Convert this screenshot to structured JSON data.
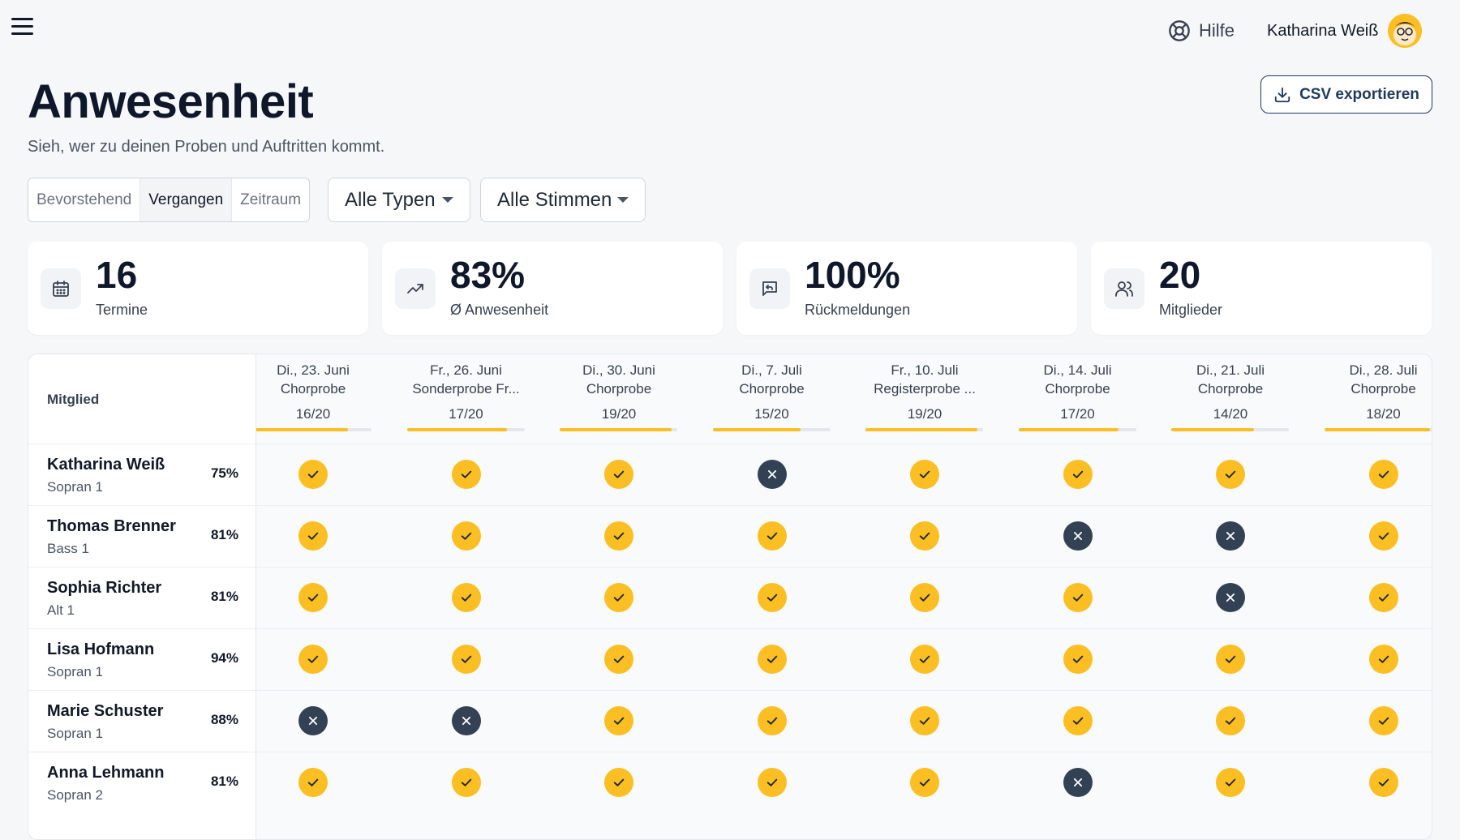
{
  "header": {
    "help_label": "Hilfe",
    "user_name": "Katharina Weiß"
  },
  "page": {
    "title": "Anwesenheit",
    "subtitle": "Sieh, wer zu deinen Proben und Auftritten kommt.",
    "export_label": "CSV exportieren"
  },
  "filters": {
    "segments": [
      "Bevorstehend",
      "Vergangen",
      "Zeitraum"
    ],
    "active_segment": "Vergangen",
    "type_select": "Alle Typen",
    "voice_select": "Alle Stimmen"
  },
  "stats": [
    {
      "value": "16",
      "label": "Termine",
      "icon": "calendar-icon"
    },
    {
      "value": "83%",
      "label": "Ø Anwesenheit",
      "icon": "trending-up-icon"
    },
    {
      "value": "100%",
      "label": "Rückmeldungen",
      "icon": "message-reply-icon"
    },
    {
      "value": "20",
      "label": "Mitglieder",
      "icon": "users-icon"
    }
  ],
  "table": {
    "member_header": "Mitglied",
    "events": [
      {
        "date": "Di., 23. Juni",
        "title": "Chorprobe",
        "count": "16/20",
        "rate": 0.8
      },
      {
        "date": "Fr., 26. Juni",
        "title": "Sonderprobe Fr...",
        "count": "17/20",
        "rate": 0.85
      },
      {
        "date": "Di., 30. Juni",
        "title": "Chorprobe",
        "count": "19/20",
        "rate": 0.95
      },
      {
        "date": "Di., 7. Juli",
        "title": "Chorprobe",
        "count": "15/20",
        "rate": 0.75
      },
      {
        "date": "Fr., 10. Juli",
        "title": "Registerprobe ...",
        "count": "19/20",
        "rate": 0.95
      },
      {
        "date": "Di., 14. Juli",
        "title": "Chorprobe",
        "count": "17/20",
        "rate": 0.85
      },
      {
        "date": "Di., 21. Juli",
        "title": "Chorprobe",
        "count": "14/20",
        "rate": 0.7
      },
      {
        "date": "Di., 28. Juli",
        "title": "Chorprobe",
        "count": "18/20",
        "rate": 0.9
      }
    ],
    "members": [
      {
        "name": "Katharina Weiß",
        "voice": "Sopran 1",
        "pct": "75%",
        "attendance": [
          1,
          1,
          1,
          0,
          1,
          1,
          1,
          1
        ]
      },
      {
        "name": "Thomas Brenner",
        "voice": "Bass 1",
        "pct": "81%",
        "attendance": [
          1,
          1,
          1,
          1,
          1,
          0,
          0,
          1
        ]
      },
      {
        "name": "Sophia Richter",
        "voice": "Alt 1",
        "pct": "81%",
        "attendance": [
          1,
          1,
          1,
          1,
          1,
          1,
          0,
          1
        ]
      },
      {
        "name": "Lisa Hofmann",
        "voice": "Sopran 1",
        "pct": "94%",
        "attendance": [
          1,
          1,
          1,
          1,
          1,
          1,
          1,
          1
        ]
      },
      {
        "name": "Marie Schuster",
        "voice": "Sopran 1",
        "pct": "88%",
        "attendance": [
          0,
          0,
          1,
          1,
          1,
          1,
          1,
          1
        ]
      },
      {
        "name": "Anna Lehmann",
        "voice": "Sopran 2",
        "pct": "81%",
        "attendance": [
          1,
          1,
          1,
          1,
          1,
          0,
          1,
          1
        ]
      }
    ]
  },
  "colors": {
    "accent": "#fbbf24",
    "absent": "#334155",
    "primary": "#1e3a5f"
  }
}
